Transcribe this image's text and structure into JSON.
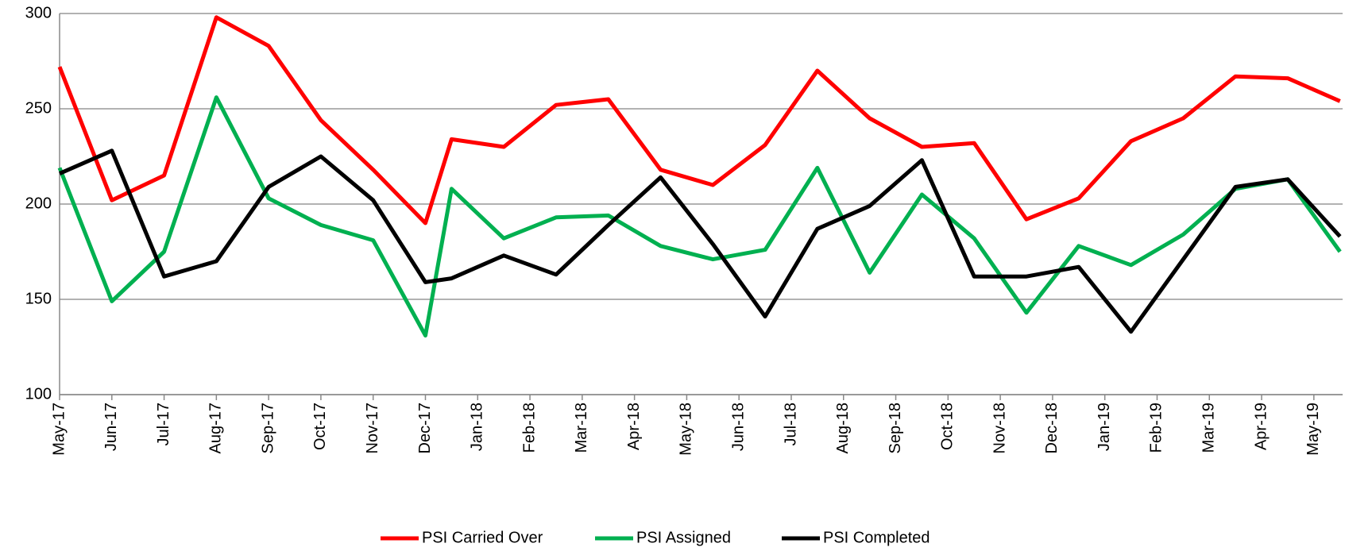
{
  "chart_data": {
    "type": "line",
    "x": [
      0,
      1,
      2,
      3,
      4,
      5,
      6,
      7,
      7.5,
      8.5,
      9.5,
      10.5,
      11.5,
      12.5,
      13.5,
      14.5,
      15.5,
      16.5,
      17.5,
      18.5,
      19.5,
      20.5,
      21.5,
      22.5,
      23.5,
      24.5
    ],
    "series": [
      {
        "name": "PSI Carried Over",
        "color": "#ff0000",
        "values": [
          272,
          202,
          215,
          298,
          283,
          244,
          218,
          190,
          234,
          230,
          252,
          255,
          218,
          210,
          231,
          270,
          245,
          230,
          232,
          192,
          203,
          233,
          245,
          267,
          266,
          254
        ]
      },
      {
        "name": "PSI Assigned",
        "color": "#00b050",
        "values": [
          219,
          149,
          175,
          256,
          203,
          189,
          181,
          131,
          208,
          182,
          193,
          194,
          178,
          171,
          176,
          219,
          164,
          205,
          182,
          143,
          178,
          168,
          184,
          208,
          213,
          175
        ]
      },
      {
        "name": "PSI Completed",
        "color": "#000000",
        "values": [
          216,
          228,
          162,
          170,
          209,
          225,
          202,
          159,
          161,
          173,
          163,
          189,
          214,
          179,
          141,
          187,
          199,
          223,
          162,
          162,
          167,
          133,
          171,
          209,
          213,
          183
        ]
      }
    ],
    "xlim": [
      0,
      24.55
    ],
    "xticks": [
      {
        "value": 0,
        "label": "May-17"
      },
      {
        "value": 1,
        "label": "Jun-17"
      },
      {
        "value": 2,
        "label": "Jul-17"
      },
      {
        "value": 3,
        "label": "Aug-17"
      },
      {
        "value": 4,
        "label": "Sep-17"
      },
      {
        "value": 5,
        "label": "Oct-17"
      },
      {
        "value": 6,
        "label": "Nov-17"
      },
      {
        "value": 7,
        "label": "Dec-17"
      },
      {
        "value": 8,
        "label": "Jan-18"
      },
      {
        "value": 9,
        "label": "Feb-18"
      },
      {
        "value": 10,
        "label": "Mar-18"
      },
      {
        "value": 11,
        "label": "Apr-18"
      },
      {
        "value": 12,
        "label": "May-18"
      },
      {
        "value": 13,
        "label": "Jun-18"
      },
      {
        "value": 14,
        "label": "Jul-18"
      },
      {
        "value": 15,
        "label": "Aug-18"
      },
      {
        "value": 16,
        "label": "Sep-18"
      },
      {
        "value": 17,
        "label": "Oct-18"
      },
      {
        "value": 18,
        "label": "Nov-18"
      },
      {
        "value": 19,
        "label": "Dec-18"
      },
      {
        "value": 20,
        "label": "Jan-19"
      },
      {
        "value": 21,
        "label": "Feb-19"
      },
      {
        "value": 22,
        "label": "Mar-19"
      },
      {
        "value": 23,
        "label": "Apr-19"
      },
      {
        "value": 24,
        "label": "May-19"
      }
    ],
    "ylim": [
      100,
      300
    ],
    "yticks": [
      100,
      150,
      200,
      250,
      300
    ],
    "grid": true,
    "legend": "bottom"
  }
}
